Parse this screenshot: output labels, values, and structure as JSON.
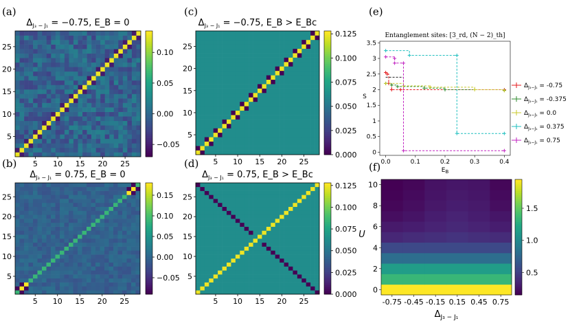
{
  "chart_data": [
    {
      "type": "heatmap",
      "panel": "(a)",
      "title": "Δ_{J3−J1} = −0.75,  E_B = 0",
      "matrix_size": 28,
      "xticks": [
        "5",
        "10",
        "15",
        "20",
        "25"
      ],
      "yticks": [
        "5",
        "10",
        "15",
        "20",
        "25"
      ],
      "colorbar_ticks": [
        "0.10",
        "0.05",
        "0.00",
        "−0.05"
      ],
      "colorbar_range": [
        -0.07,
        0.135
      ],
      "diagonal_value": 0.13,
      "offdiag_range": [
        -0.06,
        0.03
      ]
    },
    {
      "type": "heatmap",
      "panel": "(b)",
      "title": "Δ_{J3−J1} = 0.75,  E_B = 0",
      "matrix_size": 28,
      "xticks": [
        "5",
        "10",
        "15",
        "20",
        "25"
      ],
      "yticks": [
        "5",
        "10",
        "15",
        "20",
        "25"
      ],
      "colorbar_ticks": [
        "0.15",
        "0.10",
        "0.05",
        "0.00",
        "−0.05"
      ],
      "colorbar_range": [
        -0.09,
        0.18
      ],
      "diagonal_value": 0.09,
      "corner_value": 0.18
    },
    {
      "type": "heatmap",
      "panel": "(c)",
      "title": "Δ_{J3−J1} = −0.75,  E_B > E_Bc",
      "matrix_size": 28,
      "xticks": [
        "5",
        "10",
        "15",
        "20",
        "25"
      ],
      "yticks": [
        "5",
        "10",
        "15",
        "20",
        "25"
      ],
      "colorbar_ticks": [
        "0.125",
        "0.100",
        "0.075",
        "0.050",
        "0.025",
        "0.000"
      ],
      "colorbar_range": [
        0.0,
        0.128
      ],
      "diagonal_value": 0.125,
      "background_value": 0.0625
    },
    {
      "type": "heatmap",
      "panel": "(d)",
      "title": "Δ_{J3−J1} = 0.75,  E_B > E_Bc",
      "matrix_size": 28,
      "xticks": [
        "5",
        "10",
        "15",
        "20",
        "25"
      ],
      "yticks": [
        "5",
        "10",
        "15",
        "20",
        "25"
      ],
      "colorbar_ticks": [
        "0.125",
        "0.100",
        "0.075",
        "0.050",
        "0.025",
        "0.000"
      ],
      "colorbar_range": [
        0.0,
        0.128
      ],
      "diagonal_value": 0.125,
      "background_value": 0.0625
    },
    {
      "type": "line",
      "panel": "(e)",
      "title": "Entanglement sites: [3_rd, (N − 2)_th]",
      "xlabel": "E_B",
      "ylabel": "S",
      "xlim": [
        -0.02,
        0.42
      ],
      "ylim": [
        -0.1,
        3.55
      ],
      "xticks": [
        "0.0",
        "0.1",
        "0.2",
        "0.3",
        "0.4"
      ],
      "yticks": [
        "0",
        "0.5",
        "1",
        "1.5",
        "2",
        "2.5",
        "3",
        "3.5"
      ],
      "series": [
        {
          "name": "Δ_{J3−J1} = -0.75",
          "color": "#e41a1c",
          "points": [
            [
              0.0,
              2.55
            ],
            [
              0.005,
              2.5
            ],
            [
              0.01,
              2.2
            ],
            [
              0.02,
              2.0
            ],
            [
              0.05,
              2.0
            ],
            [
              0.4,
              2.0
            ]
          ]
        },
        {
          "name": "Δ_{J3−J1} = -0.375",
          "color": "#2e8b2e",
          "points": [
            [
              0.0,
              2.2
            ],
            [
              0.02,
              2.15
            ],
            [
              0.04,
              2.1
            ],
            [
              0.13,
              2.05
            ],
            [
              0.2,
              2.0
            ],
            [
              0.4,
              1.98
            ]
          ]
        },
        {
          "name": "Δ_{J3−J1} = 0.0",
          "color": "#c8c82a",
          "points": [
            [
              0.0,
              2.2
            ],
            [
              0.06,
              2.12
            ],
            [
              0.15,
              2.08
            ],
            [
              0.3,
              2.0
            ],
            [
              0.4,
              1.97
            ]
          ]
        },
        {
          "name": "Δ_{J3−J1} = 0.375",
          "color": "#1fbfbf",
          "points": [
            [
              0.0,
              3.25
            ],
            [
              0.08,
              3.1
            ],
            [
              0.24,
              3.1
            ],
            [
              0.24,
              0.6
            ],
            [
              0.4,
              0.6
            ]
          ]
        },
        {
          "name": "Δ_{J3−J1} = 0.75",
          "color": "#c020c0",
          "points": [
            [
              0.0,
              3.05
            ],
            [
              0.03,
              3.0
            ],
            [
              0.03,
              2.85
            ],
            [
              0.06,
              2.85
            ],
            [
              0.06,
              0.05
            ],
            [
              0.4,
              0.05
            ]
          ]
        }
      ],
      "extra_black_step": [
        [
          0.0,
          2.4
        ],
        [
          0.06,
          2.4
        ],
        [
          0.06,
          2.0
        ]
      ]
    },
    {
      "type": "heatmap",
      "panel": "(f)",
      "xlabel": "Δ_{J3−J1}",
      "ylabel": "U",
      "x": [
        -0.75,
        -0.45,
        -0.15,
        0.15,
        0.45,
        0.75
      ],
      "xticks": [
        "-0.75",
        "-0.45",
        "-0.15",
        "0.15",
        "0.45",
        "0.75"
      ],
      "y": [
        0,
        1,
        2,
        3,
        4,
        5,
        6,
        7,
        8,
        9,
        10
      ],
      "yticks": [
        "0",
        "2",
        "4",
        "6",
        "8",
        "10"
      ],
      "colorbar_ticks": [
        "1.5",
        "1.0",
        "0.5"
      ],
      "colorbar_range": [
        0.15,
        1.95
      ],
      "values_by_row": [
        [
          1.95,
          1.95,
          1.95,
          1.95,
          1.95,
          1.95
        ],
        [
          1.35,
          1.35,
          1.35,
          1.35,
          1.35,
          1.35
        ],
        [
          1.15,
          1.15,
          1.15,
          1.15,
          1.15,
          1.15
        ],
        [
          0.8,
          0.8,
          0.8,
          0.8,
          0.8,
          0.8
        ],
        [
          0.55,
          0.55,
          0.55,
          0.55,
          0.55,
          0.55
        ],
        [
          0.35,
          0.38,
          0.4,
          0.42,
          0.4,
          0.38
        ],
        [
          0.28,
          0.3,
          0.33,
          0.36,
          0.33,
          0.3
        ],
        [
          0.22,
          0.25,
          0.3,
          0.33,
          0.3,
          0.26
        ],
        [
          0.18,
          0.22,
          0.27,
          0.3,
          0.28,
          0.22
        ],
        [
          0.16,
          0.2,
          0.25,
          0.28,
          0.26,
          0.2
        ],
        [
          0.15,
          0.18,
          0.24,
          0.26,
          0.25,
          0.18
        ]
      ]
    }
  ]
}
